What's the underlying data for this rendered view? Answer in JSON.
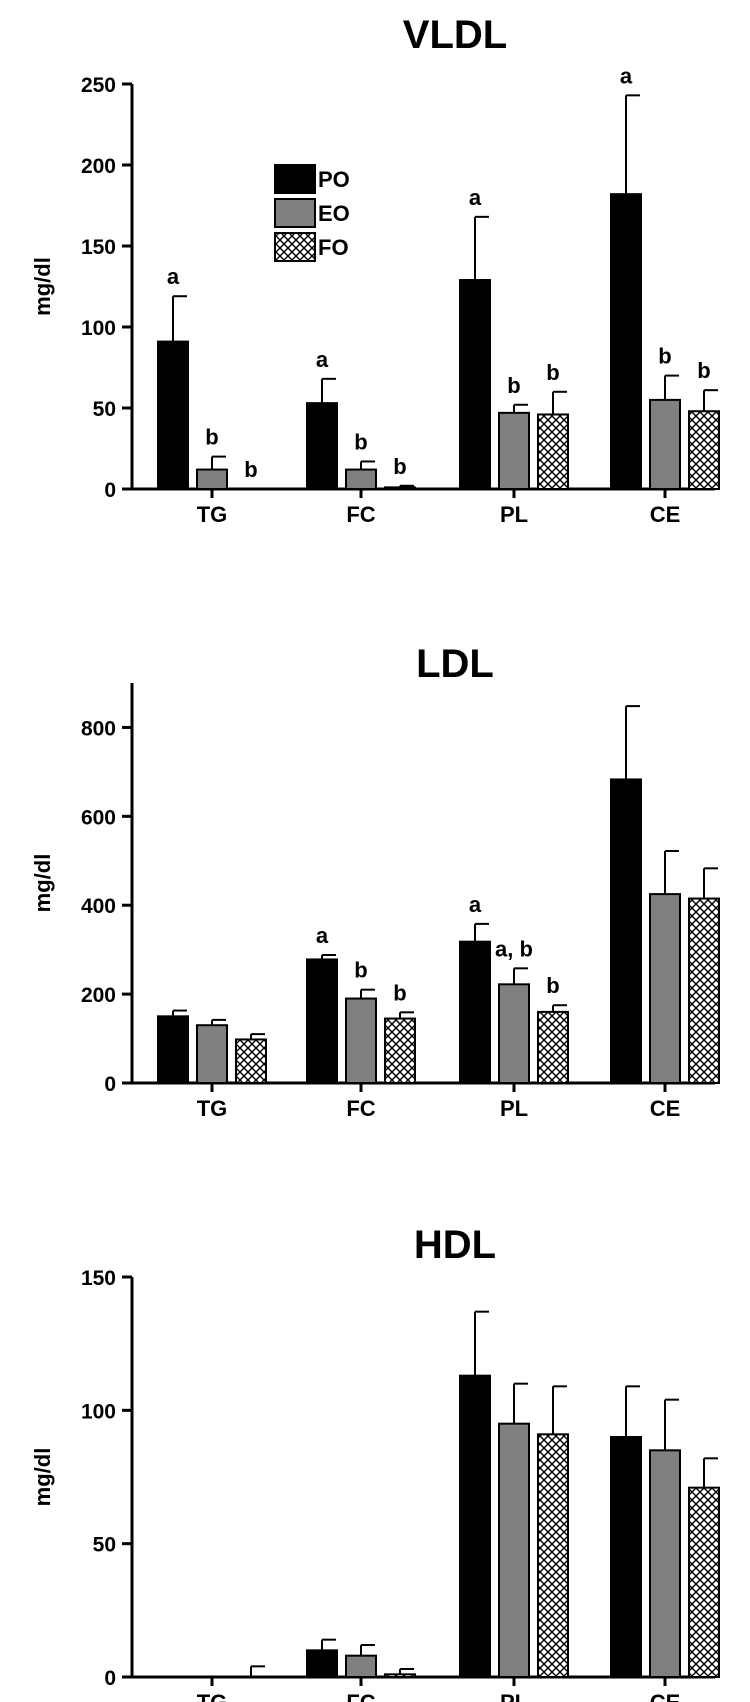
{
  "figure_title": "",
  "chart_data": [
    {
      "type": "bar",
      "title": "VLDL",
      "xlabel": "",
      "ylabel": "mg/dl",
      "ylim": [
        0,
        250
      ],
      "yticks": [
        0,
        50,
        100,
        150,
        200,
        250
      ],
      "categories": [
        "TG",
        "FC",
        "PL",
        "CE"
      ],
      "legend": {
        "placement": "top-left",
        "entries": [
          "PO",
          "EO",
          "FO"
        ]
      },
      "series": [
        {
          "name": "PO",
          "color": "#000000",
          "pattern": "solid",
          "values": [
            91,
            53,
            129,
            182
          ],
          "errors": [
            28,
            15,
            39,
            61
          ],
          "annotations": [
            "a",
            "a",
            "a",
            "a"
          ]
        },
        {
          "name": "EO",
          "color": "#808080",
          "pattern": "solid",
          "values": [
            12,
            12,
            47,
            55
          ],
          "errors": [
            8,
            5,
            5,
            15
          ],
          "annotations": [
            "b",
            "b",
            "b",
            "b"
          ]
        },
        {
          "name": "FO",
          "color": "#ffffff",
          "pattern": "crosshatch",
          "values": [
            0,
            1,
            46,
            48
          ],
          "errors": [
            0,
            1,
            14,
            13
          ],
          "annotations": [
            "b",
            "b",
            "b",
            "b"
          ]
        }
      ]
    },
    {
      "type": "bar",
      "title": "LDL",
      "xlabel": "",
      "ylabel": "mg/dl",
      "ylim": [
        0,
        900
      ],
      "yticks": [
        0,
        200,
        400,
        600,
        800
      ],
      "categories": [
        "TG",
        "FC",
        "PL",
        "CE"
      ],
      "series": [
        {
          "name": "PO",
          "color": "#000000",
          "pattern": "solid",
          "values": [
            150,
            278,
            318,
            683
          ],
          "errors": [
            13,
            10,
            40,
            165
          ],
          "annotations": [
            "",
            "a",
            "a",
            ""
          ]
        },
        {
          "name": "EO",
          "color": "#808080",
          "pattern": "solid",
          "values": [
            130,
            190,
            222,
            425
          ],
          "errors": [
            12,
            20,
            36,
            97
          ],
          "annotations": [
            "",
            "b",
            "a, b",
            ""
          ]
        },
        {
          "name": "FO",
          "color": "#ffffff",
          "pattern": "crosshatch",
          "values": [
            98,
            145,
            160,
            415
          ],
          "errors": [
            12,
            14,
            15,
            68
          ],
          "annotations": [
            "",
            "b",
            "b",
            ""
          ]
        }
      ]
    },
    {
      "type": "bar",
      "title": "HDL",
      "xlabel": "",
      "ylabel": "mg/dl",
      "ylim": [
        0,
        150
      ],
      "yticks": [
        0,
        50,
        100,
        150
      ],
      "categories": [
        "TG",
        "FC",
        "PL",
        "CE"
      ],
      "series": [
        {
          "name": "PO",
          "color": "#000000",
          "pattern": "solid",
          "values": [
            0,
            10,
            113,
            90
          ],
          "errors": [
            0,
            4,
            24,
            19
          ],
          "annotations": [
            "",
            "",
            "",
            ""
          ]
        },
        {
          "name": "EO",
          "color": "#808080",
          "pattern": "solid",
          "values": [
            0,
            8,
            95,
            85
          ],
          "errors": [
            0,
            4,
            15,
            19
          ],
          "annotations": [
            "",
            "",
            "",
            ""
          ]
        },
        {
          "name": "FO",
          "color": "#ffffff",
          "pattern": "crosshatch",
          "values": [
            0,
            1,
            91,
            71
          ],
          "errors": [
            4,
            2,
            18,
            11
          ],
          "annotations": [
            "",
            "",
            "",
            ""
          ]
        }
      ]
    }
  ]
}
